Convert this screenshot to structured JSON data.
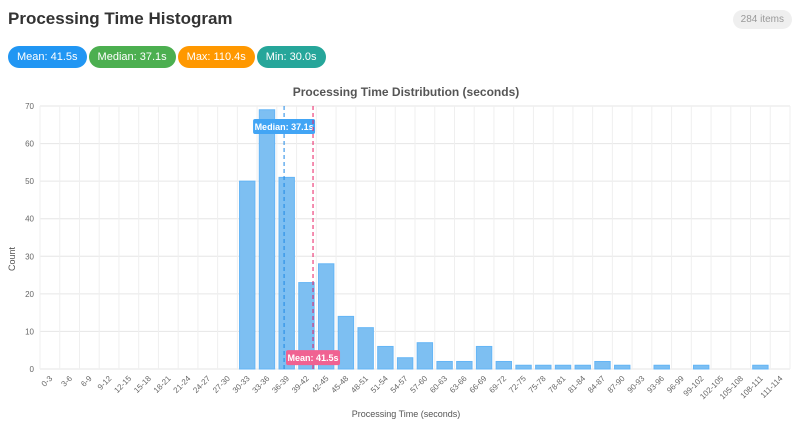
{
  "header": {
    "title": "Processing Time Histogram",
    "count": "284 items"
  },
  "stats": {
    "mean": "Mean: 41.5s",
    "median": "Median: 37.1s",
    "max": "Max: 110.4s",
    "min": "Min: 30.0s"
  },
  "colors": {
    "bar": "#7dbff2",
    "bar_border": "#64b5f6",
    "median_line": "#1e88e5",
    "mean_line": "#e91e63",
    "median_label_bg": "#42a5f5",
    "mean_label_bg": "#f06292"
  },
  "chart_data": {
    "type": "bar",
    "title": "Processing Time Distribution (seconds)",
    "xlabel": "Processing Time (seconds)",
    "ylabel": "Count",
    "ylim": [
      0,
      70
    ],
    "yticks": [
      0,
      10,
      20,
      30,
      40,
      50,
      60,
      70
    ],
    "grid": true,
    "categories": [
      "0-3",
      "3-6",
      "6-9",
      "9-12",
      "12-15",
      "15-18",
      "18-21",
      "21-24",
      "24-27",
      "27-30",
      "30-33",
      "33-36",
      "36-39",
      "39-42",
      "42-45",
      "45-48",
      "48-51",
      "51-54",
      "54-57",
      "57-60",
      "60-63",
      "63-66",
      "66-69",
      "69-72",
      "72-75",
      "75-78",
      "78-81",
      "81-84",
      "84-87",
      "87-90",
      "90-93",
      "93-96",
      "96-99",
      "99-102",
      "102-105",
      "105-108",
      "108-111",
      "111-114"
    ],
    "values": [
      0,
      0,
      0,
      0,
      0,
      0,
      0,
      0,
      0,
      0,
      50,
      69,
      51,
      23,
      28,
      14,
      11,
      6,
      3,
      7,
      2,
      2,
      6,
      2,
      1,
      1,
      1,
      1,
      2,
      1,
      0,
      1,
      0,
      1,
      0,
      0,
      1,
      0
    ],
    "annotations": [
      {
        "label": "Median: 37.1s",
        "x": 37.1
      },
      {
        "label": "Mean: 41.5s",
        "x": 41.5
      }
    ]
  }
}
